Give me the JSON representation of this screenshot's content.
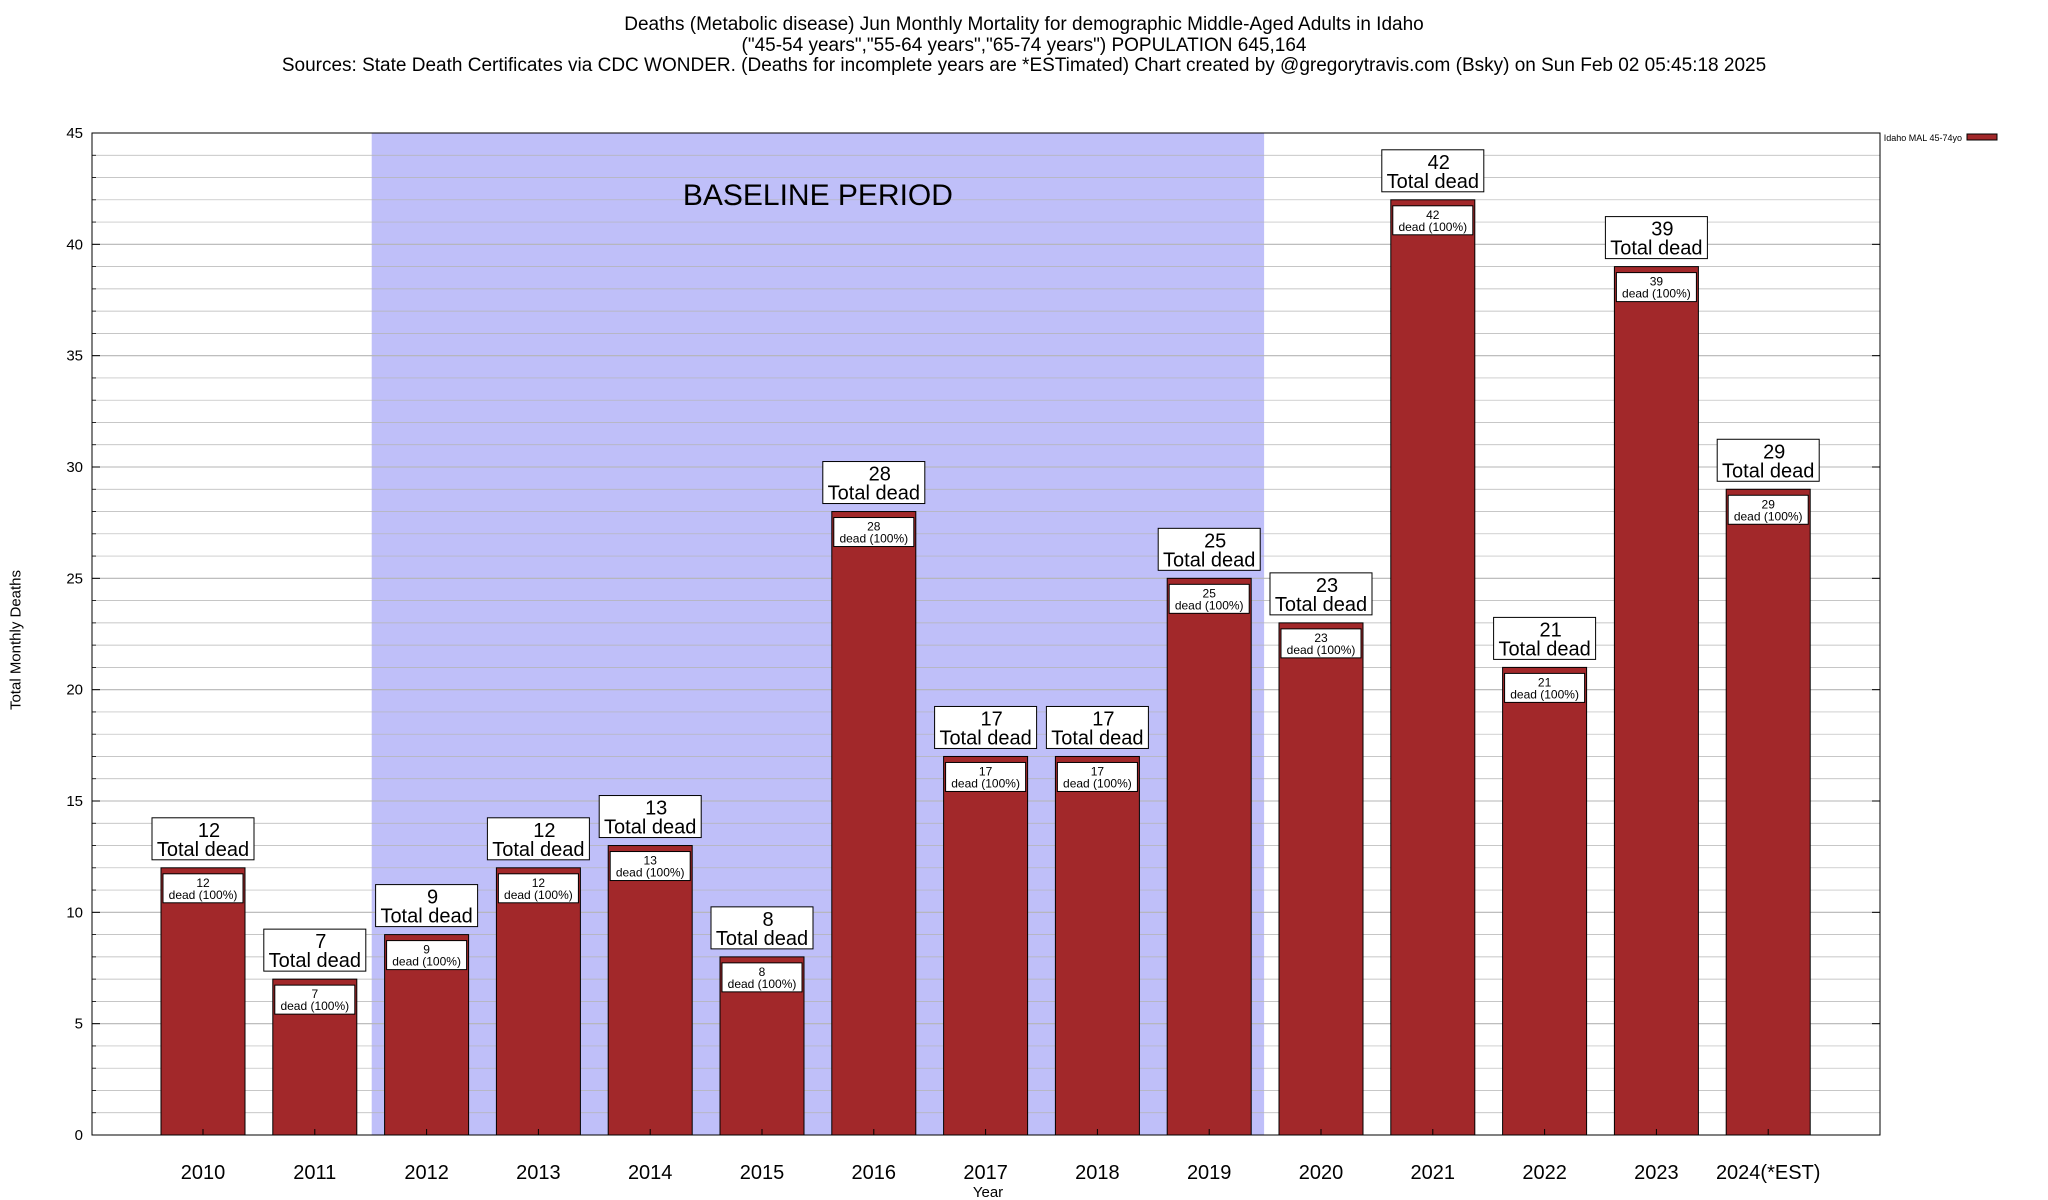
{
  "title_lines": [
    "Deaths (Metabolic disease) Jun Monthly Mortality for demographic Middle-Aged Adults in Idaho",
    "(\"45-54 years\",\"55-64 years\",\"65-74 years\") POPULATION 645,164",
    "Sources: State Death Certificates via CDC WONDER. (Deaths for incomplete years are *ESTimated)                    Chart created by @gregorytravis.com (Bsky) on Sun Feb 02 05:45:18 2025"
  ],
  "colors": {
    "bar": "#a2282a",
    "baseline_band": "#bfbff9",
    "grid": "#b4b4b4"
  },
  "chart_data": {
    "type": "bar",
    "xlabel": "Year",
    "ylabel": "Total Monthly Deaths",
    "ylim": [
      0,
      45
    ],
    "y_ticks": [
      0,
      5,
      10,
      15,
      20,
      25,
      30,
      35,
      40,
      45
    ],
    "grid": true,
    "legend": {
      "label": "Idaho MAL 45-74yo",
      "placement": "top-right"
    },
    "categories": [
      "2010",
      "2011",
      "2012",
      "2013",
      "2014",
      "2015",
      "2016",
      "2017",
      "2018",
      "2019",
      "2020",
      "2021",
      "2022",
      "2023",
      "2024(*EST)"
    ],
    "values": [
      12,
      7,
      9,
      12,
      13,
      8,
      28,
      17,
      17,
      25,
      23,
      42,
      21,
      39,
      29
    ],
    "total_label": "Total dead",
    "inner_label": "dead (100%)",
    "baseline": {
      "label": "BASELINE PERIOD",
      "from": "2012",
      "to": "2019"
    }
  }
}
